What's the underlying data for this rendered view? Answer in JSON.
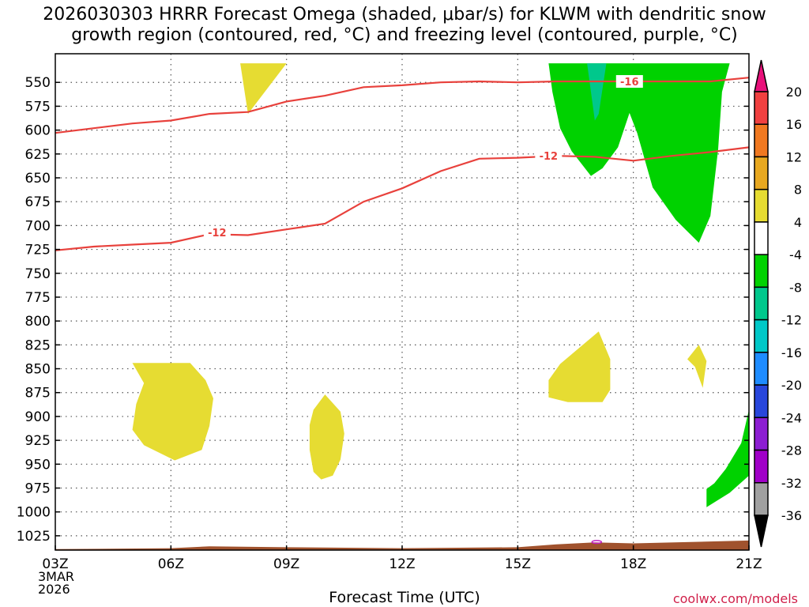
{
  "title": {
    "line1": "2026030303 HRRR Forecast Omega (shaded, μbar/s) for KLWM with dendritic snow",
    "line2": "growth region (contoured, red, °C) and freezing level (contoured, purple, °C)"
  },
  "credit": "coolwx.com/models",
  "colors": {
    "isotherm": "#e8413c",
    "terrain": "#a0522d",
    "grid": "#555555"
  },
  "chart_data": {
    "type": "heatmap",
    "title": "2026030303 HRRR Forecast Omega (shaded, μbar/s) for KLWM with dendritic snow growth region (contoured, red, °C) and freezing level (contoured, purple, °C)",
    "xlabel": "Forecast Time (UTC)",
    "ylabel": "",
    "x_ticks": [
      "03Z",
      "06Z",
      "09Z",
      "12Z",
      "15Z",
      "18Z",
      "21Z"
    ],
    "x_ticks_hour": [
      3,
      6,
      9,
      12,
      15,
      18,
      21
    ],
    "start_date": [
      "3MAR",
      "2026"
    ],
    "xlim": [
      3,
      21
    ],
    "y_ticks": [
      550,
      575,
      600,
      625,
      650,
      675,
      700,
      725,
      750,
      775,
      800,
      825,
      850,
      875,
      900,
      925,
      950,
      975,
      1000,
      1025
    ],
    "ylim": [
      1040,
      520
    ],
    "grid": true,
    "colorbar": {
      "ticks": [
        20,
        16,
        12,
        8,
        4,
        -4,
        -8,
        -12,
        -16,
        -20,
        -24,
        -28,
        -32,
        -36
      ],
      "bins": [
        {
          "from": 20,
          "to": 24,
          "color": "#e8107a"
        },
        {
          "from": 16,
          "to": 20,
          "color": "#f04040"
        },
        {
          "from": 12,
          "to": 16,
          "color": "#f07820"
        },
        {
          "from": 8,
          "to": 12,
          "color": "#e8a820"
        },
        {
          "from": 4,
          "to": 8,
          "color": "#e6dc32"
        },
        {
          "from": -4,
          "to": 4,
          "color": "#ffffff"
        },
        {
          "from": -8,
          "to": -4,
          "color": "#00d200"
        },
        {
          "from": -12,
          "to": -8,
          "color": "#00c88c"
        },
        {
          "from": -16,
          "to": -12,
          "color": "#00c8c8"
        },
        {
          "from": -20,
          "to": -16,
          "color": "#1e8cff"
        },
        {
          "from": -24,
          "to": -20,
          "color": "#2846dc"
        },
        {
          "from": -28,
          "to": -24,
          "color": "#8c1ed2"
        },
        {
          "from": -32,
          "to": -28,
          "color": "#a000c8"
        },
        {
          "from": -36,
          "to": -32,
          "color": "#a0a0a0"
        },
        {
          "from": -40,
          "to": -36,
          "color": "#000000"
        }
      ]
    },
    "shaded_regions": [
      {
        "color": "#e6dc32",
        "points": [
          [
            7.8,
            530
          ],
          [
            9.0,
            530
          ],
          [
            8.0,
            583
          ]
        ]
      },
      {
        "color": "#e6dc32",
        "points": [
          [
            5.0,
            844
          ],
          [
            6.5,
            844
          ],
          [
            6.9,
            862
          ],
          [
            7.1,
            881
          ],
          [
            7.0,
            910
          ],
          [
            6.8,
            935
          ],
          [
            6.1,
            946
          ],
          [
            5.3,
            930
          ],
          [
            5.0,
            914
          ],
          [
            5.1,
            887
          ],
          [
            5.3,
            865
          ]
        ]
      },
      {
        "color": "#e6dc32",
        "points": [
          [
            10.0,
            877
          ],
          [
            10.4,
            895
          ],
          [
            10.5,
            918
          ],
          [
            10.4,
            945
          ],
          [
            10.2,
            962
          ],
          [
            9.9,
            966
          ],
          [
            9.7,
            958
          ],
          [
            9.6,
            935
          ],
          [
            9.6,
            909
          ],
          [
            9.7,
            893
          ]
        ]
      },
      {
        "color": "#e6dc32",
        "points": [
          [
            17.1,
            811
          ],
          [
            17.4,
            840
          ],
          [
            17.4,
            872
          ],
          [
            17.2,
            885
          ],
          [
            16.3,
            885
          ],
          [
            15.8,
            880
          ],
          [
            15.8,
            862
          ],
          [
            16.1,
            845
          ]
        ]
      },
      {
        "color": "#e6dc32",
        "points": [
          [
            19.7,
            825
          ],
          [
            19.9,
            842
          ],
          [
            19.8,
            870
          ],
          [
            19.6,
            848
          ],
          [
            19.4,
            840
          ]
        ]
      },
      {
        "color": "#00d200",
        "points": [
          [
            15.8,
            530
          ],
          [
            20.5,
            530
          ],
          [
            20.3,
            560
          ],
          [
            20.2,
            620
          ],
          [
            20.0,
            690
          ],
          [
            19.7,
            718
          ],
          [
            19.1,
            694
          ],
          [
            18.5,
            660
          ],
          [
            18.1,
            603
          ],
          [
            17.9,
            582
          ],
          [
            17.6,
            618
          ],
          [
            17.2,
            640
          ],
          [
            16.9,
            648
          ],
          [
            16.4,
            622
          ],
          [
            16.1,
            598
          ],
          [
            15.9,
            560
          ]
        ]
      },
      {
        "color": "#00c88c",
        "points": [
          [
            16.8,
            530
          ],
          [
            17.3,
            530
          ],
          [
            17.1,
            583
          ],
          [
            17.0,
            590
          ]
        ]
      },
      {
        "color": "#00d200",
        "points": [
          [
            21.0,
            893
          ],
          [
            21.0,
            962
          ],
          [
            20.5,
            980
          ],
          [
            19.9,
            995
          ],
          [
            19.9,
            976
          ],
          [
            20.1,
            970
          ],
          [
            20.4,
            955
          ],
          [
            20.8,
            928
          ]
        ]
      }
    ],
    "isotherms": [
      {
        "label": "-16",
        "color": "#e8413c",
        "x": [
          3,
          4,
          5,
          6,
          7,
          8,
          9,
          10,
          11,
          12,
          13,
          14,
          15,
          16,
          17,
          18,
          19,
          20,
          21
        ],
        "y": [
          603,
          598,
          593,
          590,
          583,
          581,
          570,
          564,
          555,
          553,
          550,
          549,
          550,
          549,
          549,
          549,
          549,
          549,
          545
        ]
      },
      {
        "label": "-12",
        "color": "#e8413c",
        "x": [
          3,
          4,
          5,
          6,
          7,
          8,
          9,
          10,
          11,
          12,
          13,
          14,
          15,
          16,
          17,
          18,
          19,
          20,
          21
        ],
        "y": [
          726,
          722,
          720,
          718,
          709,
          710,
          704,
          698,
          675,
          661,
          643,
          630,
          629,
          627,
          628,
          632,
          627,
          623,
          618
        ]
      }
    ],
    "contour_labels": [
      {
        "text": "-16",
        "x": 17.9,
        "y": 549
      },
      {
        "text": "-12",
        "x": 15.8,
        "y": 627
      },
      {
        "text": "-12",
        "x": 7.2,
        "y": 707
      }
    ],
    "terrain": {
      "label": "surface",
      "x": [
        3,
        6,
        7,
        9,
        12,
        15,
        16,
        17,
        18,
        21
      ],
      "y": [
        1039,
        1038,
        1036,
        1037,
        1038,
        1037,
        1034,
        1032,
        1033,
        1030
      ]
    },
    "notes": "dashed-grid pressure-time section; small purple contour near 17Z at surface"
  }
}
